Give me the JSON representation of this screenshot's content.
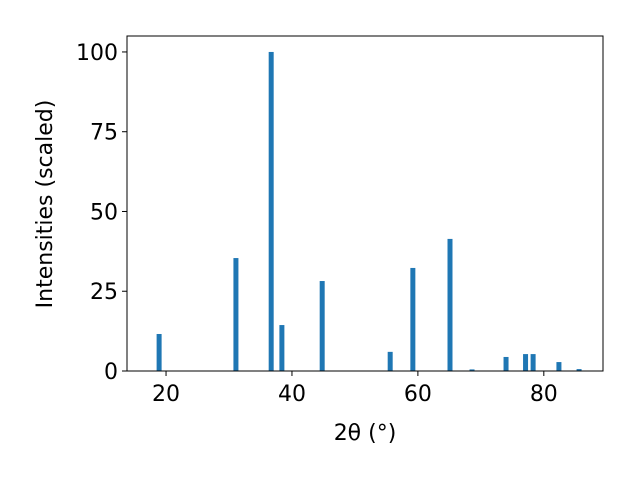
{
  "chart_data": {
    "type": "bar",
    "xlabel": "2θ (°)",
    "ylabel": "Intensities (scaled)",
    "x": [
      18.9,
      31.1,
      36.7,
      38.4,
      44.8,
      55.6,
      59.2,
      65.1,
      68.6,
      74.0,
      77.1,
      78.3,
      82.4,
      85.6
    ],
    "values": [
      11.6,
      35.4,
      100,
      14.4,
      28.2,
      6.0,
      32.3,
      41.4,
      0.5,
      4.4,
      5.3,
      5.3,
      2.8,
      0.6
    ],
    "color": "#1f77b4",
    "xlim": [
      13.8,
      89.4
    ],
    "xticks": [
      20,
      40,
      60,
      80
    ],
    "ylim": [
      0,
      105
    ],
    "yticks": [
      0,
      25,
      50,
      75,
      100
    ]
  }
}
